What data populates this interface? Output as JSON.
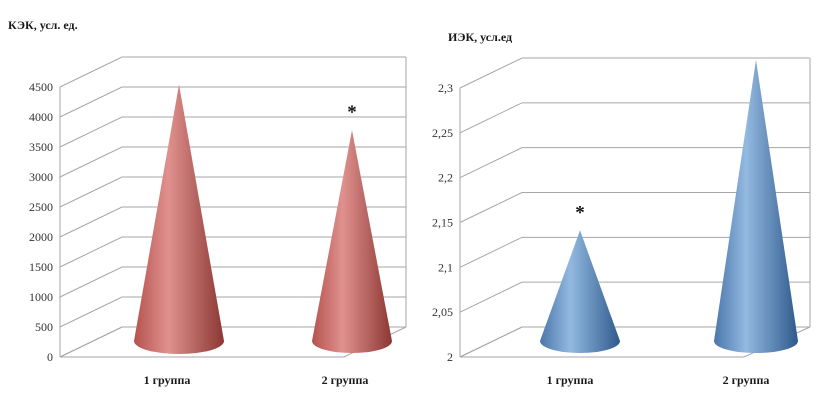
{
  "page": {
    "background": "#ffffff"
  },
  "chart_data": [
    {
      "type": "bar",
      "subtype": "3d-cone",
      "title": "",
      "ylabel": "КЭК, усл. ед.",
      "xlabel": "",
      "categories": [
        "1 группа",
        "2 группа"
      ],
      "values": [
        4500,
        3700
      ],
      "ytick_labels": [
        "0",
        "500",
        "1000",
        "1500",
        "2000",
        "2500",
        "3000",
        "3500",
        "4000",
        "4500"
      ],
      "ytick_values": [
        0,
        500,
        1000,
        1500,
        2000,
        2500,
        3000,
        3500,
        4000,
        4500
      ],
      "ylim": [
        0,
        4500
      ],
      "grid": true,
      "legend": "none",
      "annotations": [
        {
          "category_index": 1,
          "text": "*"
        }
      ],
      "colors": {
        "cone_light": "#e0918e",
        "cone_mid": "#b5524f",
        "cone_dark": "#8c3734"
      }
    },
    {
      "type": "bar",
      "subtype": "3d-cone",
      "title": "",
      "ylabel": "ИЭК, усл.ед",
      "xlabel": "",
      "categories": [
        "1 группа",
        "2 группа"
      ],
      "values": [
        2.13,
        2.33
      ],
      "ytick_labels": [
        "2",
        "2,05",
        "2,1",
        "2,15",
        "2,2",
        "2,25",
        "2,3"
      ],
      "ytick_values": [
        2,
        2.05,
        2.1,
        2.15,
        2.2,
        2.25,
        2.3
      ],
      "ylim": [
        2,
        2.3
      ],
      "grid": true,
      "legend": "none",
      "annotations": [
        {
          "category_index": 0,
          "text": "*"
        }
      ],
      "colors": {
        "cone_light": "#93b9e0",
        "cone_mid": "#4a76ab",
        "cone_dark": "#2e5a8c"
      }
    }
  ]
}
